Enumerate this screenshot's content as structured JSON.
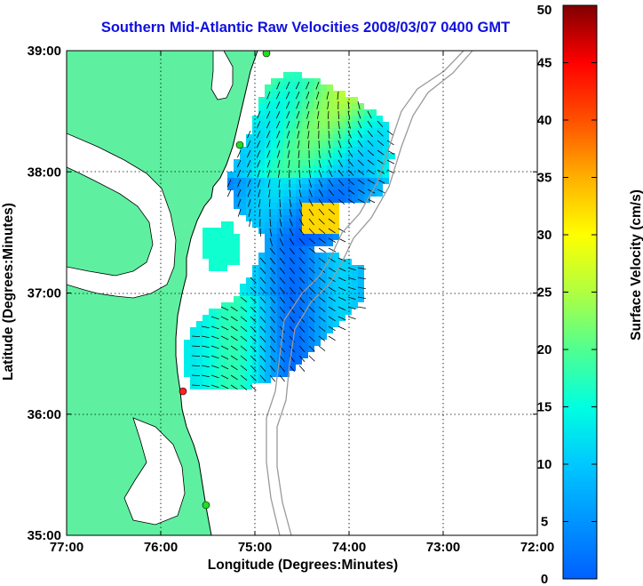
{
  "title": "Southern Mid-Atlantic Raw Velocities 2008/03/07 0400 GMT",
  "x_axis": {
    "label": "Longitude (Degrees:Minutes)",
    "ticks": [
      "77:00",
      "76:00",
      "75:00",
      "74:00",
      "73:00",
      "72:00"
    ]
  },
  "y_axis": {
    "label": "Latitude (Degrees:Minutes)",
    "ticks": [
      "39:00",
      "38:00",
      "37:00",
      "36:00",
      "35:00"
    ]
  },
  "colorbar": {
    "label": "Surface Velocity (cm/s)",
    "range": [
      0,
      50
    ],
    "ticks": [
      "50",
      "45",
      "40",
      "35",
      "30",
      "25",
      "20",
      "15",
      "10",
      "5",
      "0"
    ]
  },
  "colors": {
    "title": "#1010e0",
    "land": "#5ef0a0",
    "bathymetry": "#9a9a9a",
    "radar_site": "#22dd22",
    "radar_site_highlight": "#ff2020"
  }
}
